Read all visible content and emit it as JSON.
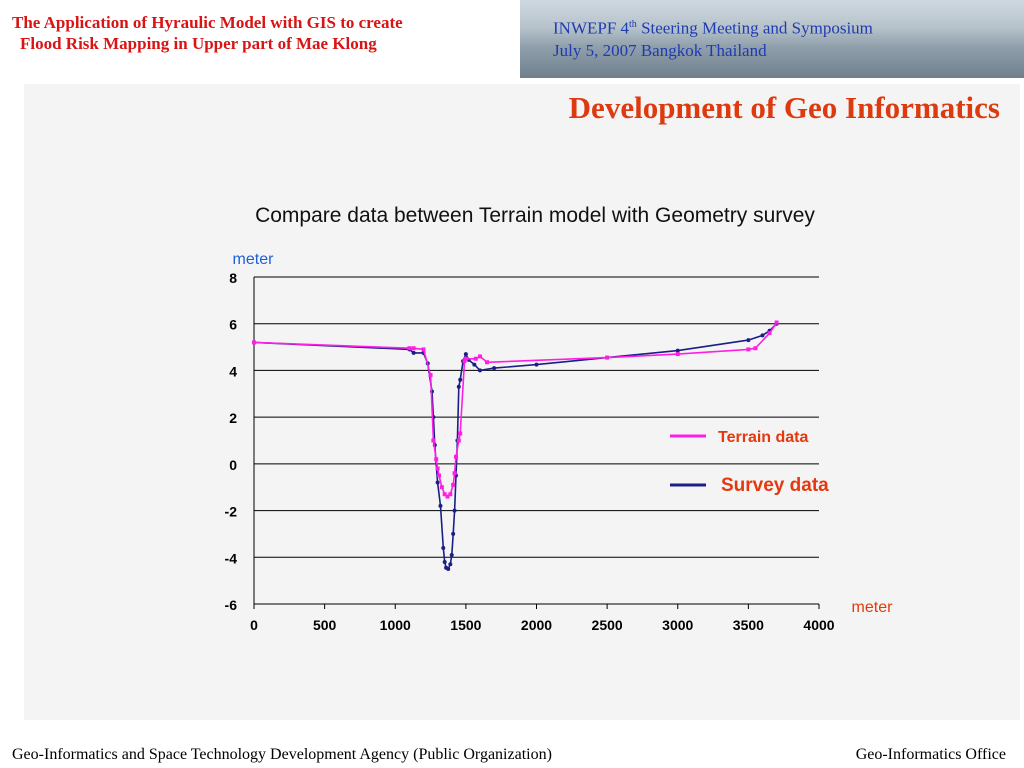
{
  "header": {
    "title_line1": "The Application of Hyraulic Model with GIS to create",
    "title_line2": "Flood Risk Mapping  in Upper part of Mae Klong",
    "conference_line1_prefix": "INWEPF  4",
    "conference_line1_sup": "th",
    "conference_line1_suffix": "  Steering Meeting and Symposium",
    "conference_line2": "July  5, 2007  Bangkok  Thailand"
  },
  "slide_title": "Development of Geo Informatics",
  "footer": {
    "left": "Geo-Informatics and Space Technology Development Agency (Public Organization)",
    "right": "Geo-Informatics Office"
  },
  "colors": {
    "accent_red": "#d81414",
    "title_orange": "#dd3a10",
    "conf_blue": "#1f3bb0",
    "terrain": "#ff1ee6",
    "survey": "#1a1f86"
  },
  "chart_data": {
    "type": "line",
    "title": "Compare data between Terrain model with Geometry survey",
    "ylabel": "meter",
    "xlabel": "meter",
    "xlim": [
      0,
      4000
    ],
    "ylim": [
      -6,
      8
    ],
    "x_ticks": [
      "0",
      "500",
      "1000",
      "1500",
      "2000",
      "2500",
      "3000",
      "3500",
      "4000"
    ],
    "y_ticks": [
      "8",
      "6",
      "4",
      "2",
      "0",
      "-2",
      "-4",
      "-6"
    ],
    "grid": "horizontal",
    "legend_position": "right",
    "series": [
      {
        "name": "Terrain data",
        "color": "#ff1ee6",
        "points": [
          [
            0,
            5.2
          ],
          [
            1100,
            4.95
          ],
          [
            1130,
            4.95
          ],
          [
            1200,
            4.9
          ],
          [
            1250,
            3.8
          ],
          [
            1270,
            1.0
          ],
          [
            1290,
            0.2
          ],
          [
            1300,
            -0.2
          ],
          [
            1310,
            -0.5
          ],
          [
            1330,
            -1.0
          ],
          [
            1350,
            -1.3
          ],
          [
            1370,
            -1.4
          ],
          [
            1390,
            -1.3
          ],
          [
            1410,
            -0.9
          ],
          [
            1420,
            -0.4
          ],
          [
            1430,
            0.3
          ],
          [
            1450,
            1.0
          ],
          [
            1460,
            1.3
          ],
          [
            1490,
            4.4
          ],
          [
            1500,
            4.5
          ],
          [
            1570,
            4.5
          ],
          [
            1600,
            4.6
          ],
          [
            1650,
            4.35
          ],
          [
            2500,
            4.55
          ],
          [
            3000,
            4.7
          ],
          [
            3500,
            4.9
          ],
          [
            3550,
            4.95
          ],
          [
            3650,
            5.6
          ],
          [
            3700,
            6.05
          ]
        ]
      },
      {
        "name": "Survey data",
        "color": "#1a1f86",
        "points": [
          [
            0,
            5.2
          ],
          [
            1100,
            4.9
          ],
          [
            1130,
            4.75
          ],
          [
            1200,
            4.75
          ],
          [
            1230,
            4.3
          ],
          [
            1260,
            3.1
          ],
          [
            1270,
            2.0
          ],
          [
            1280,
            0.8
          ],
          [
            1300,
            -0.8
          ],
          [
            1320,
            -1.8
          ],
          [
            1340,
            -3.6
          ],
          [
            1350,
            -4.2
          ],
          [
            1360,
            -4.45
          ],
          [
            1375,
            -4.5
          ],
          [
            1390,
            -4.3
          ],
          [
            1400,
            -3.9
          ],
          [
            1410,
            -3.0
          ],
          [
            1420,
            -2.0
          ],
          [
            1430,
            -0.5
          ],
          [
            1440,
            1.0
          ],
          [
            1450,
            3.3
          ],
          [
            1460,
            3.6
          ],
          [
            1480,
            4.4
          ],
          [
            1500,
            4.7
          ],
          [
            1520,
            4.45
          ],
          [
            1560,
            4.25
          ],
          [
            1600,
            4.0
          ],
          [
            1700,
            4.1
          ],
          [
            2000,
            4.25
          ],
          [
            2500,
            4.55
          ],
          [
            3000,
            4.85
          ],
          [
            3500,
            5.3
          ],
          [
            3600,
            5.5
          ],
          [
            3650,
            5.7
          ],
          [
            3700,
            6.0
          ]
        ]
      }
    ]
  }
}
